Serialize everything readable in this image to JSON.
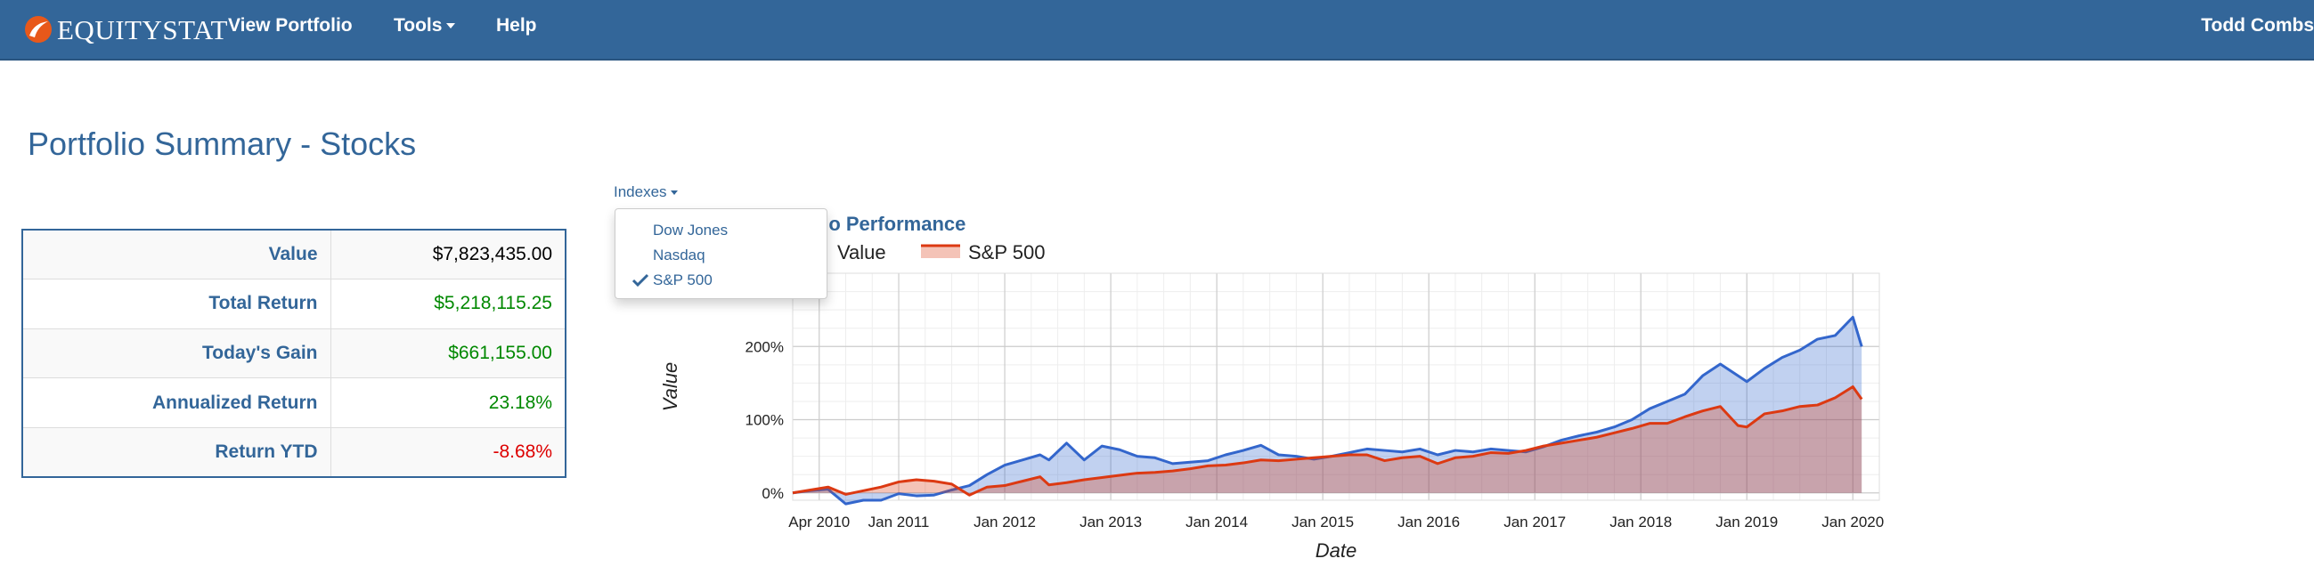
{
  "nav": {
    "brand": "EQUITYSTAT",
    "logo_icon": "equitystat-swoosh-logo",
    "links": [
      "View Portfolio",
      "Tools",
      "Help"
    ],
    "user": "Todd Combs"
  },
  "page": {
    "title": "Portfolio Summary - Stocks"
  },
  "summary": {
    "rows": [
      {
        "label": "Value",
        "value": "$7,823,435.00",
        "color": "#000000"
      },
      {
        "label": "Total Return",
        "value": "$5,218,115.25",
        "color": "#008800"
      },
      {
        "label": "Today's Gain",
        "value": "$661,155.00",
        "color": "#008800"
      },
      {
        "label": "Annualized Return",
        "value": "23.18%",
        "color": "#008800"
      },
      {
        "label": "Return YTD",
        "value": "-8.68%",
        "color": "#dd0000"
      }
    ]
  },
  "indexes": {
    "label": "Indexes",
    "options": [
      {
        "label": "Dow Jones",
        "checked": false
      },
      {
        "label": "Nasdaq",
        "checked": false
      },
      {
        "label": "S&P 500",
        "checked": true
      }
    ]
  },
  "colors": {
    "primary": "#336699",
    "portfolio": "#3366cc",
    "sp500": "#dc3912",
    "positive": "#008800",
    "negative": "#dd0000"
  },
  "chart_data": {
    "type": "area",
    "title": "Portfolio Performance",
    "title_visible": "tfolio Performance",
    "xlabel": "Date",
    "ylabel": "Value",
    "ylim": [
      -10,
      300
    ],
    "yticks": [
      0,
      100,
      200
    ],
    "ytick_labels": [
      "0%",
      "100%",
      "200%"
    ],
    "xlim": [
      "2010-01",
      "2020-04"
    ],
    "xticks": [
      "2010-04",
      "2011-01",
      "2012-01",
      "2013-01",
      "2014-01",
      "2015-01",
      "2016-01",
      "2017-01",
      "2018-01",
      "2019-01",
      "2020-01"
    ],
    "xtick_labels": [
      "Apr 2010",
      "Jan 2011",
      "Jan 2012",
      "Jan 2013",
      "Jan 2014",
      "Jan 2015",
      "Jan 2016",
      "Jan 2017",
      "Jan 2018",
      "Jan 2019",
      "Jan 2020"
    ],
    "legend": "top-left",
    "legend_visible": [
      "Value",
      "S&P 500"
    ],
    "series": [
      {
        "name": "Value",
        "color": "#3366cc",
        "points": [
          [
            "2010-01",
            0
          ],
          [
            "2010-03",
            3
          ],
          [
            "2010-05",
            5
          ],
          [
            "2010-07",
            -15
          ],
          [
            "2010-09",
            -10
          ],
          [
            "2010-11",
            -10
          ],
          [
            "2011-01",
            -1
          ],
          [
            "2011-03",
            -4
          ],
          [
            "2011-05",
            -3
          ],
          [
            "2011-07",
            4
          ],
          [
            "2011-09",
            10
          ],
          [
            "2011-11",
            25
          ],
          [
            "2012-01",
            38
          ],
          [
            "2012-03",
            45
          ],
          [
            "2012-05",
            52
          ],
          [
            "2012-06",
            45
          ],
          [
            "2012-08",
            68
          ],
          [
            "2012-10",
            45
          ],
          [
            "2012-12",
            64
          ],
          [
            "2013-02",
            59
          ],
          [
            "2013-04",
            50
          ],
          [
            "2013-06",
            48
          ],
          [
            "2013-08",
            40
          ],
          [
            "2013-10",
            42
          ],
          [
            "2013-12",
            44
          ],
          [
            "2014-02",
            52
          ],
          [
            "2014-04",
            58
          ],
          [
            "2014-06",
            65
          ],
          [
            "2014-08",
            52
          ],
          [
            "2014-10",
            50
          ],
          [
            "2014-12",
            46
          ],
          [
            "2015-02",
            50
          ],
          [
            "2015-04",
            55
          ],
          [
            "2015-06",
            60
          ],
          [
            "2015-08",
            58
          ],
          [
            "2015-10",
            56
          ],
          [
            "2015-12",
            60
          ],
          [
            "2016-02",
            52
          ],
          [
            "2016-04",
            58
          ],
          [
            "2016-06",
            56
          ],
          [
            "2016-08",
            60
          ],
          [
            "2016-10",
            58
          ],
          [
            "2016-12",
            56
          ],
          [
            "2017-02",
            63
          ],
          [
            "2017-04",
            72
          ],
          [
            "2017-06",
            78
          ],
          [
            "2017-08",
            83
          ],
          [
            "2017-10",
            90
          ],
          [
            "2017-12",
            100
          ],
          [
            "2018-02",
            115
          ],
          [
            "2018-04",
            125
          ],
          [
            "2018-06",
            135
          ],
          [
            "2018-08",
            160
          ],
          [
            "2018-10",
            176
          ],
          [
            "2018-12",
            160
          ],
          [
            "2019-01",
            152
          ],
          [
            "2019-03",
            170
          ],
          [
            "2019-05",
            185
          ],
          [
            "2019-07",
            195
          ],
          [
            "2019-09",
            210
          ],
          [
            "2019-11",
            215
          ],
          [
            "2020-01",
            240
          ],
          [
            "2020-02",
            200
          ]
        ]
      },
      {
        "name": "S&P 500",
        "color": "#dc3912",
        "points": [
          [
            "2010-01",
            0
          ],
          [
            "2010-03",
            4
          ],
          [
            "2010-05",
            8
          ],
          [
            "2010-07",
            -2
          ],
          [
            "2010-09",
            3
          ],
          [
            "2010-11",
            8
          ],
          [
            "2011-01",
            15
          ],
          [
            "2011-03",
            18
          ],
          [
            "2011-05",
            16
          ],
          [
            "2011-07",
            12
          ],
          [
            "2011-09",
            -3
          ],
          [
            "2011-11",
            8
          ],
          [
            "2012-01",
            10
          ],
          [
            "2012-03",
            16
          ],
          [
            "2012-05",
            22
          ],
          [
            "2012-06",
            11
          ],
          [
            "2012-08",
            14
          ],
          [
            "2012-10",
            18
          ],
          [
            "2012-12",
            21
          ],
          [
            "2013-02",
            24
          ],
          [
            "2013-04",
            27
          ],
          [
            "2013-06",
            28
          ],
          [
            "2013-08",
            30
          ],
          [
            "2013-10",
            33
          ],
          [
            "2013-12",
            37
          ],
          [
            "2014-02",
            38
          ],
          [
            "2014-04",
            41
          ],
          [
            "2014-06",
            45
          ],
          [
            "2014-08",
            44
          ],
          [
            "2014-10",
            46
          ],
          [
            "2014-12",
            48
          ],
          [
            "2015-02",
            50
          ],
          [
            "2015-04",
            52
          ],
          [
            "2015-06",
            52
          ],
          [
            "2015-08",
            44
          ],
          [
            "2015-10",
            48
          ],
          [
            "2015-12",
            50
          ],
          [
            "2016-02",
            40
          ],
          [
            "2016-04",
            48
          ],
          [
            "2016-06",
            50
          ],
          [
            "2016-08",
            55
          ],
          [
            "2016-10",
            54
          ],
          [
            "2016-12",
            58
          ],
          [
            "2017-02",
            64
          ],
          [
            "2017-04",
            68
          ],
          [
            "2017-06",
            72
          ],
          [
            "2017-08",
            76
          ],
          [
            "2017-10",
            82
          ],
          [
            "2017-12",
            88
          ],
          [
            "2018-02",
            95
          ],
          [
            "2018-04",
            95
          ],
          [
            "2018-06",
            104
          ],
          [
            "2018-08",
            112
          ],
          [
            "2018-10",
            118
          ],
          [
            "2018-12",
            92
          ],
          [
            "2019-01",
            90
          ],
          [
            "2019-03",
            108
          ],
          [
            "2019-05",
            112
          ],
          [
            "2019-07",
            118
          ],
          [
            "2019-09",
            120
          ],
          [
            "2019-11",
            130
          ],
          [
            "2020-01",
            145
          ],
          [
            "2020-02",
            128
          ]
        ]
      }
    ]
  }
}
